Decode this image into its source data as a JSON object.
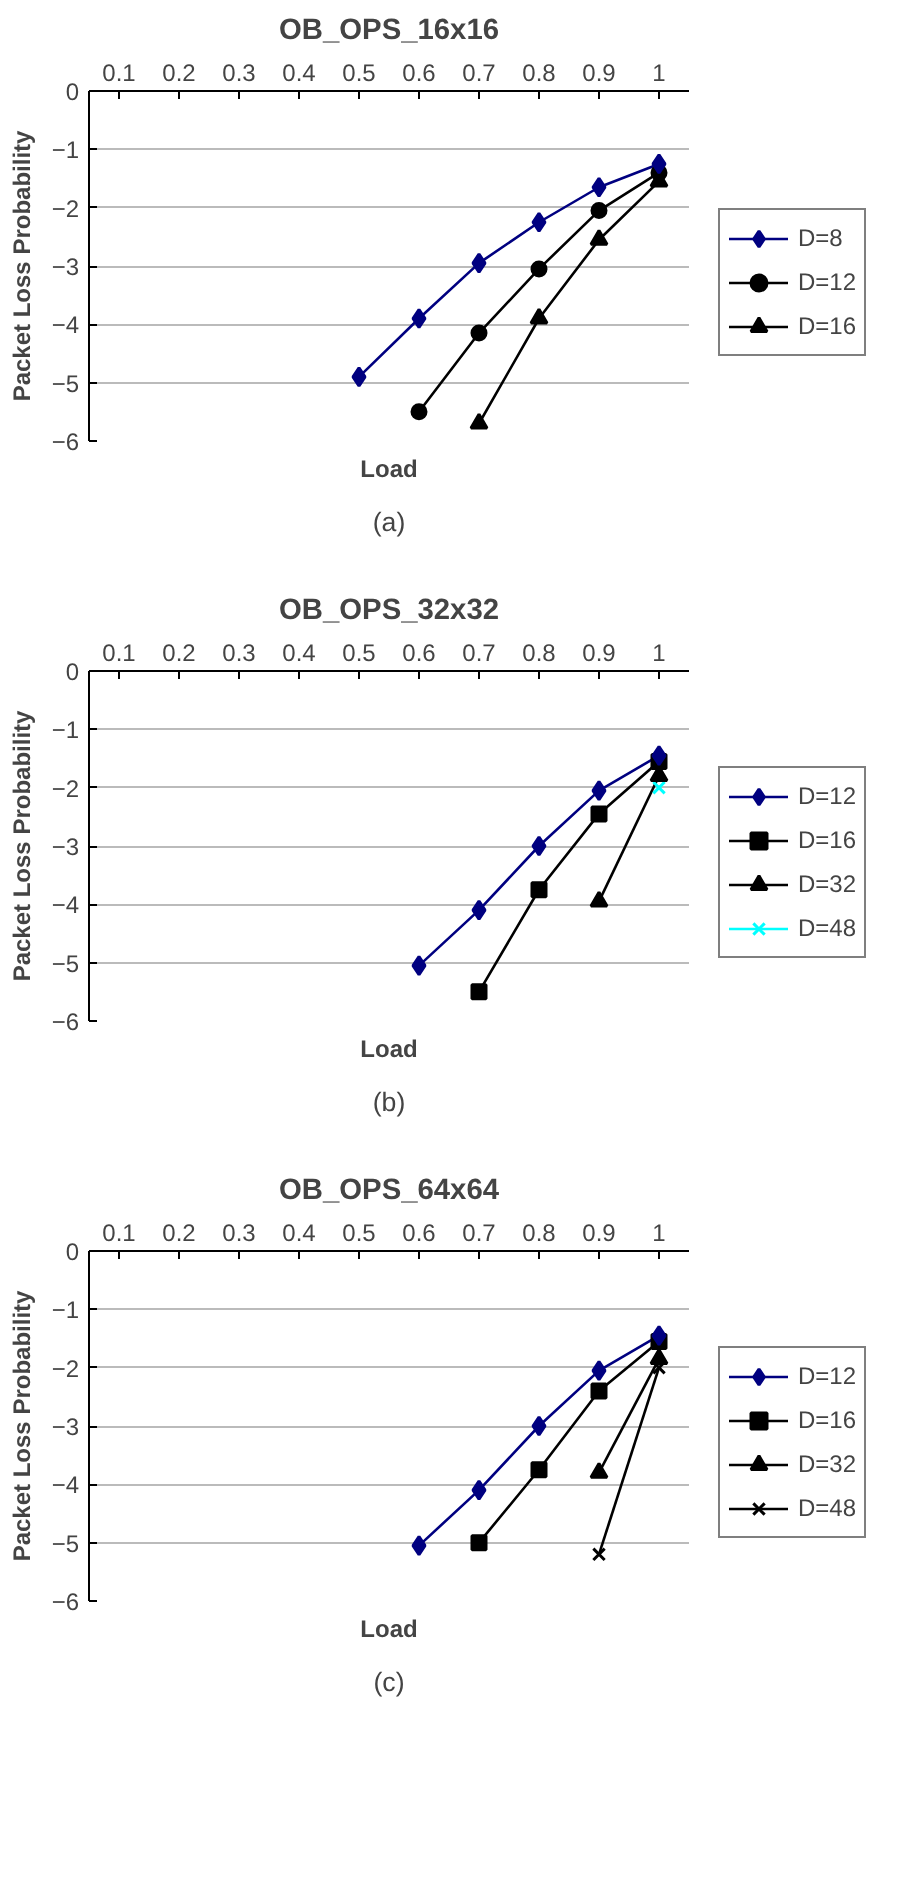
{
  "chart_data": [
    {
      "type": "line",
      "title": "OB_OPS_16x16",
      "xlabel": "Load",
      "ylabel": "Packet Loss Probability",
      "annotations": [
        "(a)"
      ],
      "categories": [
        "0.1",
        "0.2",
        "0.3",
        "0.4",
        "0.5",
        "0.6",
        "0.7",
        "0.8",
        "0.9",
        "1"
      ],
      "ylim": [
        -6,
        0
      ],
      "yticks": [
        -6,
        -5,
        -4,
        -3,
        -2,
        -1,
        0
      ],
      "grid": "y",
      "legend": "right",
      "series": [
        {
          "name": "D=8",
          "color": "#000080",
          "marker": "diamond",
          "values": [
            null,
            null,
            null,
            null,
            -4.9,
            -3.9,
            -2.95,
            -2.25,
            -1.65,
            -1.25
          ]
        },
        {
          "name": "D=12",
          "color": "#000000",
          "marker": "circle",
          "values": [
            null,
            null,
            null,
            null,
            null,
            -5.5,
            -4.15,
            -3.05,
            -2.05,
            -1.4
          ]
        },
        {
          "name": "D=16",
          "color": "#000000",
          "marker": "triangle",
          "values": [
            null,
            null,
            null,
            null,
            null,
            null,
            -5.7,
            -3.9,
            -2.55,
            -1.55
          ]
        }
      ]
    },
    {
      "type": "line",
      "title": "OB_OPS_32x32",
      "xlabel": "Load",
      "ylabel": "Packet Loss Probability",
      "annotations": [
        "(b)"
      ],
      "categories": [
        "0.1",
        "0.2",
        "0.3",
        "0.4",
        "0.5",
        "0.6",
        "0.7",
        "0.8",
        "0.9",
        "1"
      ],
      "ylim": [
        -6,
        0
      ],
      "yticks": [
        -6,
        -5,
        -4,
        -3,
        -2,
        -1,
        0
      ],
      "grid": "y",
      "legend": "right",
      "series": [
        {
          "name": "D=12",
          "color": "#000080",
          "marker": "diamond",
          "values": [
            null,
            null,
            null,
            null,
            null,
            -5.05,
            -4.1,
            -3.0,
            -2.05,
            -1.45
          ]
        },
        {
          "name": "D=16",
          "color": "#000000",
          "marker": "square",
          "values": [
            null,
            null,
            null,
            null,
            null,
            null,
            -5.5,
            -3.75,
            -2.45,
            -1.55
          ]
        },
        {
          "name": "D=32",
          "color": "#000000",
          "marker": "triangle",
          "values": [
            null,
            null,
            null,
            null,
            null,
            null,
            null,
            null,
            -3.95,
            -1.8
          ]
        },
        {
          "name": "D=48",
          "color": "#00ffff",
          "marker": "cross",
          "values": [
            null,
            null,
            null,
            null,
            null,
            null,
            null,
            null,
            null,
            -2.0
          ]
        }
      ]
    },
    {
      "type": "line",
      "title": "OB_OPS_64x64",
      "xlabel": "Load",
      "ylabel": "Packet Loss Probability",
      "annotations": [
        "(c)"
      ],
      "categories": [
        "0.1",
        "0.2",
        "0.3",
        "0.4",
        "0.5",
        "0.6",
        "0.7",
        "0.8",
        "0.9",
        "1"
      ],
      "ylim": [
        -6,
        0
      ],
      "yticks": [
        -6,
        -5,
        -4,
        -3,
        -2,
        -1,
        0
      ],
      "grid": "y",
      "legend": "right",
      "series": [
        {
          "name": "D=12",
          "color": "#000080",
          "marker": "diamond",
          "values": [
            null,
            null,
            null,
            null,
            null,
            -5.05,
            -4.1,
            -3.0,
            -2.05,
            -1.45
          ]
        },
        {
          "name": "D=16",
          "color": "#000000",
          "marker": "square",
          "values": [
            null,
            null,
            null,
            null,
            null,
            null,
            -5.0,
            -3.75,
            -2.4,
            -1.55
          ]
        },
        {
          "name": "D=32",
          "color": "#000000",
          "marker": "triangle",
          "values": [
            null,
            null,
            null,
            null,
            null,
            null,
            null,
            null,
            -3.8,
            -1.85
          ]
        },
        {
          "name": "D=48",
          "color": "#000000",
          "marker": "cross",
          "values": [
            null,
            null,
            null,
            null,
            null,
            null,
            null,
            null,
            -5.2,
            -2.0
          ]
        }
      ]
    }
  ]
}
